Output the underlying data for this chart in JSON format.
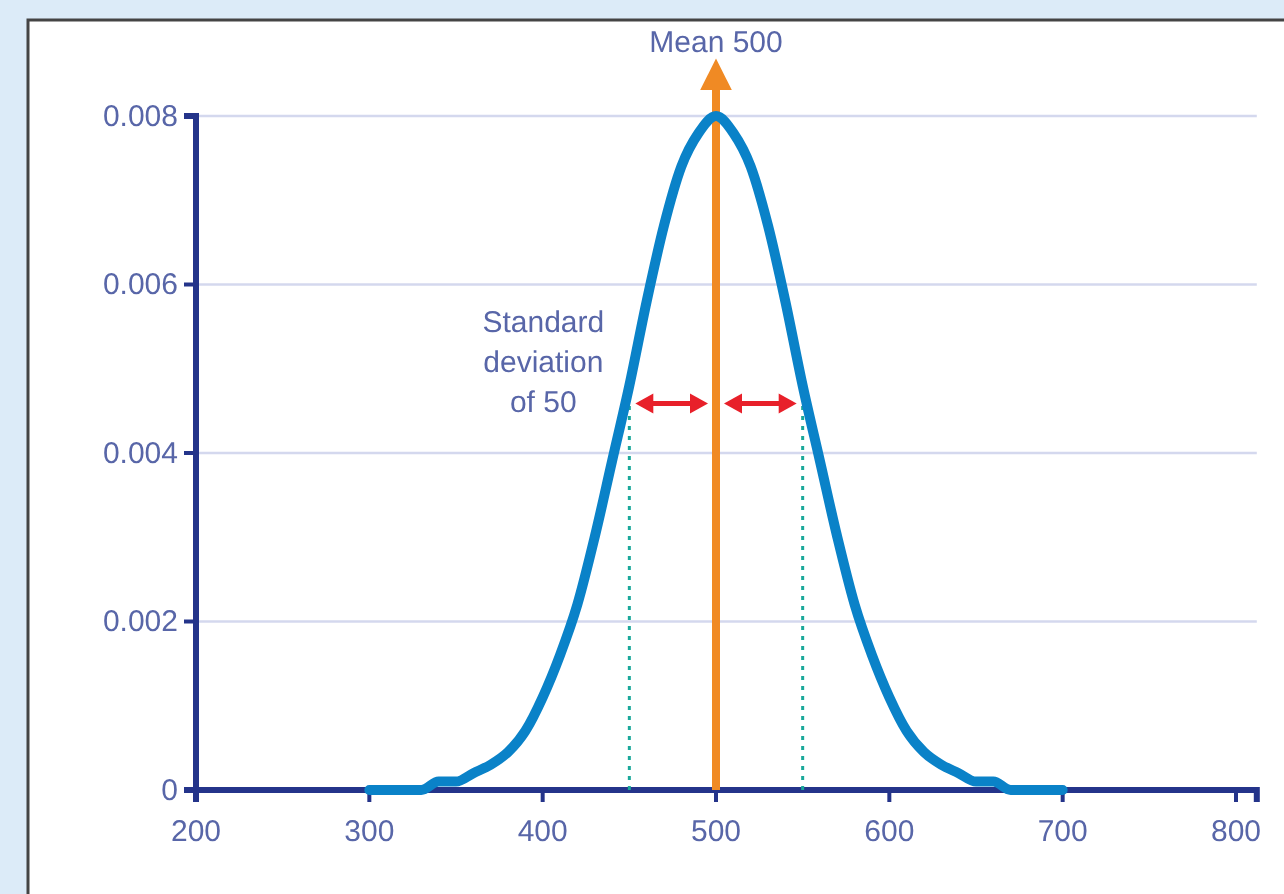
{
  "chart_data": {
    "type": "line",
    "x": [
      300,
      310,
      320,
      330,
      340,
      350,
      360,
      370,
      380,
      390,
      400,
      410,
      420,
      430,
      440,
      450,
      460,
      470,
      480,
      490,
      500,
      510,
      520,
      530,
      540,
      550,
      560,
      570,
      580,
      590,
      600,
      610,
      620,
      630,
      640,
      650,
      660,
      670,
      680,
      690,
      700
    ],
    "series": [
      {
        "color": "#0a82c8",
        "values": [
          0,
          0,
          0,
          0,
          0.0001,
          0.0001,
          0.0002,
          0.0003,
          0.00045,
          0.0007,
          0.0011,
          0.0016,
          0.0022,
          0.003,
          0.0039,
          0.0048,
          0.0058,
          0.0067,
          0.0074,
          0.0078,
          0.008,
          0.0078,
          0.0074,
          0.0067,
          0.0058,
          0.0048,
          0.0039,
          0.003,
          0.0022,
          0.0016,
          0.0011,
          0.0007,
          0.00045,
          0.0003,
          0.0002,
          0.0001,
          0.0001,
          0,
          0,
          0,
          0
        ]
      }
    ],
    "xlim": [
      200,
      812
    ],
    "xticks": [
      200,
      300,
      400,
      500,
      600,
      700,
      800
    ],
    "ylim": [
      0,
      0.008
    ],
    "yticks": [
      0,
      0.002,
      0.004,
      0.006,
      0.008
    ],
    "grid": "y",
    "marker": "none",
    "line_style": "solid",
    "ref_lines": [
      {
        "axis": "x",
        "value": 500,
        "label": "Mean 500",
        "color": "#f08a24",
        "line_style": "solid"
      },
      {
        "axis": "x",
        "value": 450,
        "color": "#1aa89a",
        "line_style": "dotted"
      },
      {
        "axis": "x",
        "value": 550,
        "color": "#1aa89a",
        "line_style": "dotted"
      }
    ],
    "annotations": [
      "Standard deviation of 50"
    ]
  }
}
